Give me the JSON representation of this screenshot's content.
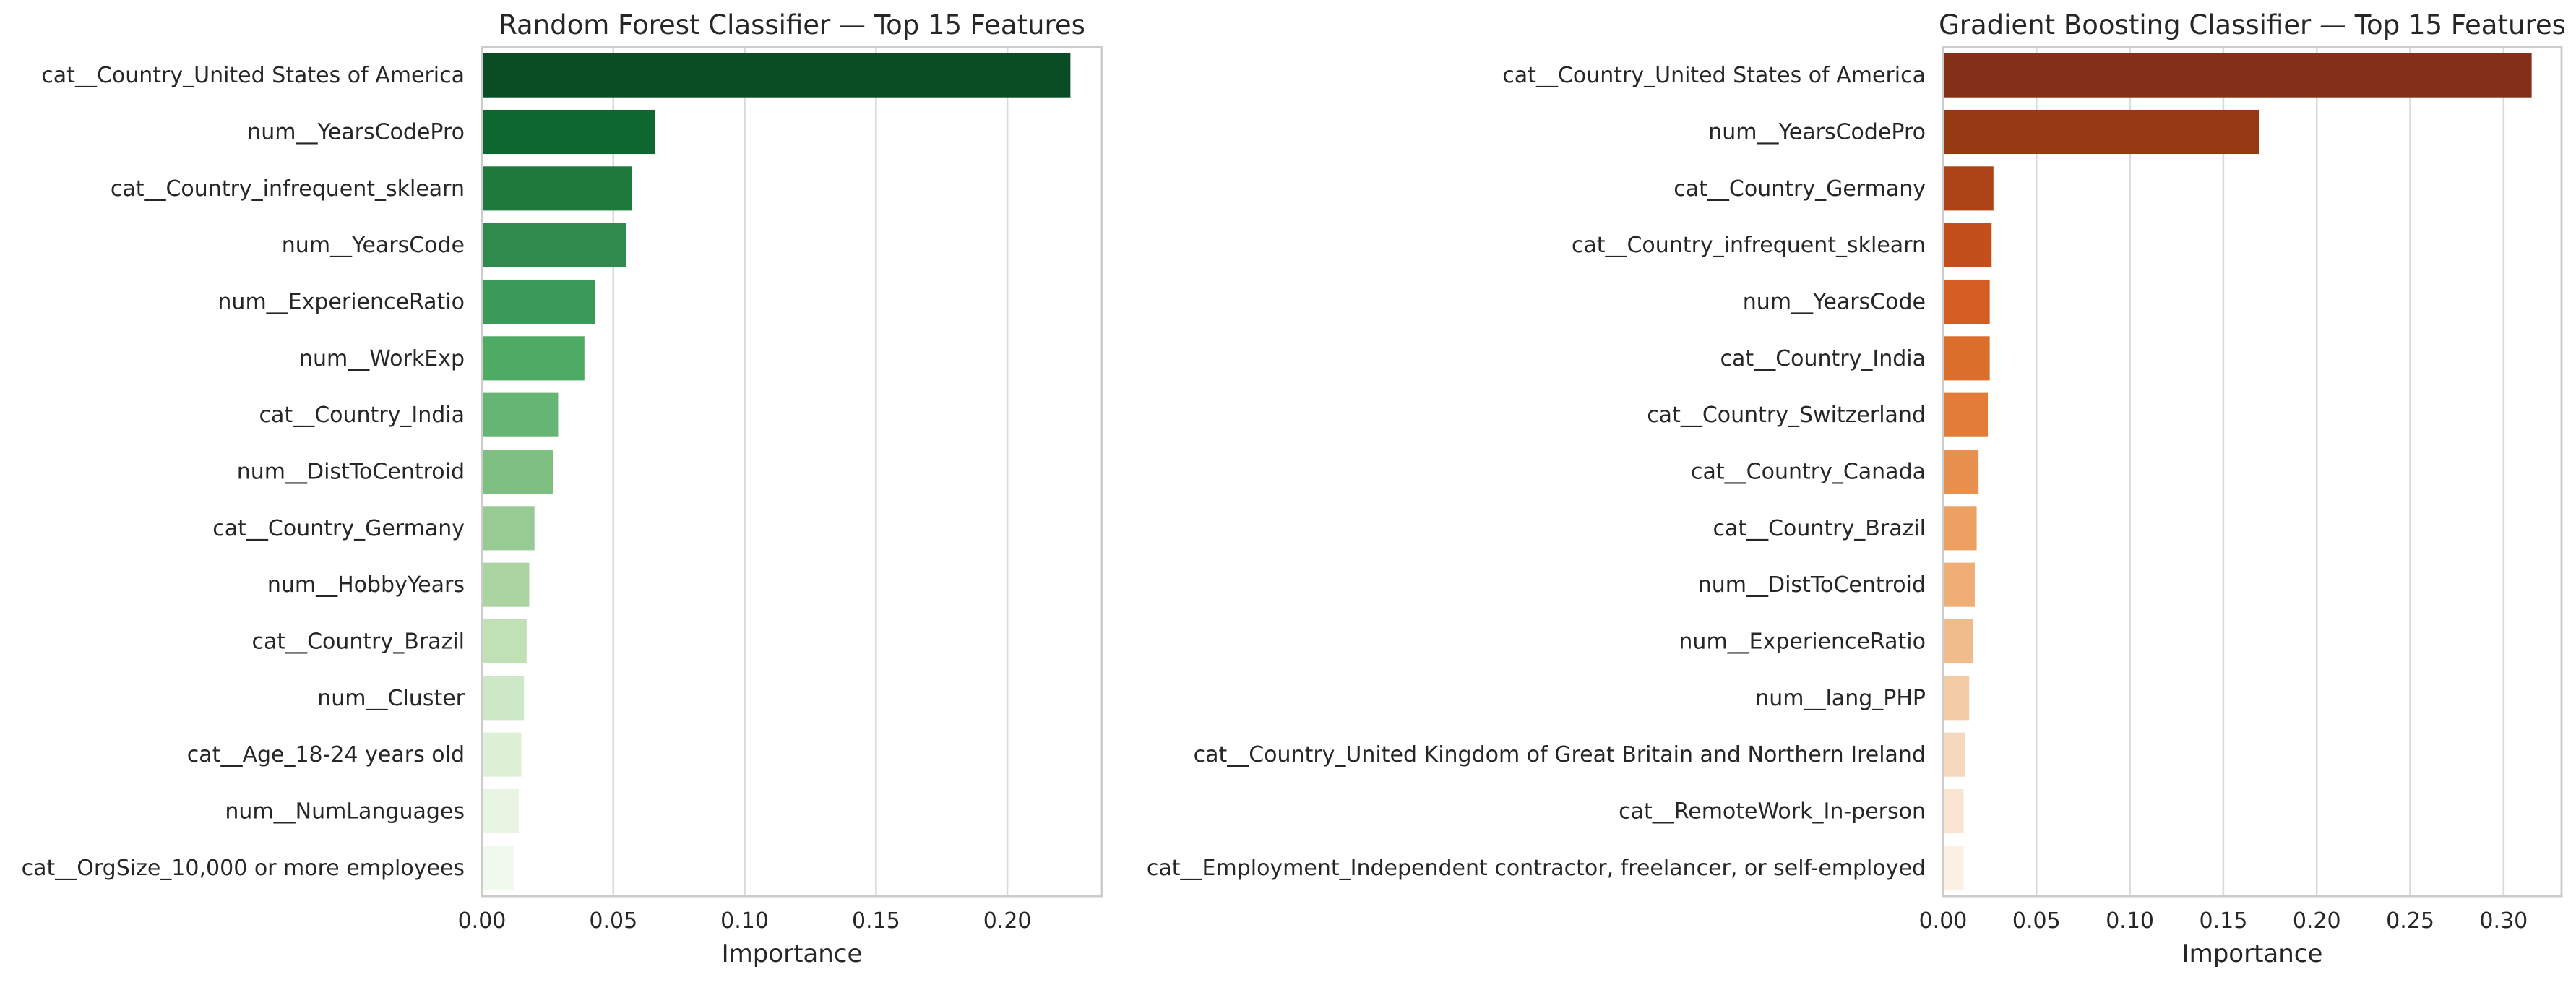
{
  "chart_data": [
    {
      "type": "bar",
      "orientation": "horizontal",
      "title": "Random Forest Classifier — Top 15 Features",
      "xlabel": "Importance",
      "ylabel": "",
      "xlim": [
        0,
        0.236
      ],
      "xticks": [
        "0.00",
        "0.05",
        "0.10",
        "0.15",
        "0.20"
      ],
      "grid": true,
      "categories": [
        "cat__Country_United States of America",
        "num__YearsCodePro",
        "cat__Country_infrequent_sklearn",
        "num__YearsCode",
        "num__ExperienceRatio",
        "num__WorkExp",
        "cat__Country_India",
        "num__DistToCentroid",
        "cat__Country_Germany",
        "num__HobbyYears",
        "cat__Country_Brazil",
        "num__Cluster",
        "cat__Age_18-24 years old",
        "num__NumLanguages",
        "cat__OrgSize_10,000 or more employees"
      ],
      "values": [
        0.224,
        0.066,
        0.057,
        0.055,
        0.043,
        0.039,
        0.029,
        0.027,
        0.02,
        0.018,
        0.017,
        0.016,
        0.015,
        0.014,
        0.012
      ],
      "colors": [
        "#0a4d24",
        "#0e6631",
        "#1d7a3c",
        "#2e8b4d",
        "#3c9a59",
        "#4dab63",
        "#65b574",
        "#80bf82",
        "#98ca93",
        "#acd4a3",
        "#c0e0b6",
        "#cde8c6",
        "#ddf0d6",
        "#e8f5e3",
        "#f1f9ee"
      ]
    },
    {
      "type": "bar",
      "orientation": "horizontal",
      "title": "Gradient Boosting Classifier — Top 15 Features",
      "xlabel": "Importance",
      "ylabel": "",
      "xlim": [
        0,
        0.331
      ],
      "xticks": [
        "0.00",
        "0.05",
        "0.10",
        "0.15",
        "0.20",
        "0.25",
        "0.30"
      ],
      "grid": true,
      "categories": [
        "cat__Country_United States of America",
        "num__YearsCodePro",
        "cat__Country_Germany",
        "cat__Country_infrequent_sklearn",
        "num__YearsCode",
        "cat__Country_India",
        "cat__Country_Switzerland",
        "cat__Country_Canada",
        "cat__Country_Brazil",
        "num__DistToCentroid",
        "num__ExperienceRatio",
        "num__lang_PHP",
        "cat__Country_United Kingdom of Great Britain and Northern Ireland",
        "cat__RemoteWork_In-person",
        "cat__Employment_Independent contractor, freelancer, or self-employed"
      ],
      "values": [
        0.315,
        0.169,
        0.027,
        0.026,
        0.025,
        0.025,
        0.024,
        0.019,
        0.018,
        0.017,
        0.016,
        0.014,
        0.012,
        0.011,
        0.011
      ],
      "colors": [
        "#842f18",
        "#963a13",
        "#ad4418",
        "#c34f1c",
        "#d45e22",
        "#dc6e2c",
        "#e27c38",
        "#e8914f",
        "#eca062",
        "#efae75",
        "#f1bc8c",
        "#f3cba5",
        "#f6d9bc",
        "#f9e5d1",
        "#fcefe3"
      ]
    }
  ]
}
